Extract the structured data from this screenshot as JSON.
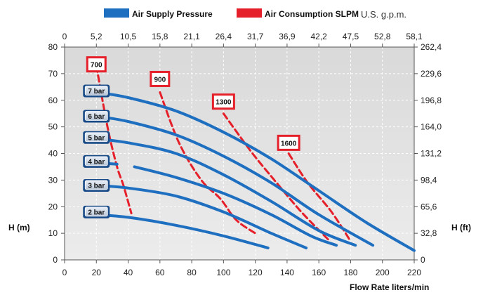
{
  "chart_data": {
    "type": "line",
    "legend": {
      "placement": "top",
      "items": [
        {
          "label": "Air Supply Pressure",
          "color": "#1f6fc0"
        },
        {
          "label": "Air Consumption SLPM",
          "color": "#e5202a"
        }
      ]
    },
    "top_axis_title": "U.S. g.p.m.",
    "xlabel": "Flow Rate liters/min",
    "ylabel_left": "H (m)",
    "ylabel_right": "H (ft)",
    "xlim": [
      0,
      220
    ],
    "ylim": [
      0,
      80
    ],
    "x_ticks": [
      "0",
      "20",
      "40",
      "60",
      "80",
      "100",
      "120",
      "140",
      "160",
      "180",
      "200",
      "220"
    ],
    "y_ticks": [
      "0",
      "10",
      "20",
      "30",
      "40",
      "50",
      "60",
      "70",
      "80"
    ],
    "top_ticks": [
      "0",
      "5,2",
      "10,5",
      "15,8",
      "21,1",
      "26,4",
      "31,7",
      "36,9",
      "42,2",
      "47,5",
      "52,8",
      "58,1"
    ],
    "right_ticks": [
      "0",
      "32,8",
      "65,6",
      "98,4",
      "131,2",
      "164,0",
      "196,8",
      "229,6",
      "262,4"
    ],
    "grid": true,
    "pressure_series": [
      {
        "name": "7 bar",
        "x": [
          20,
          40,
          70,
          100,
          130,
          160,
          190,
          220
        ],
        "y": [
          63,
          61,
          56,
          48,
          38,
          26,
          14,
          3.5
        ]
      },
      {
        "name": "6 bar",
        "x": [
          20,
          40,
          70,
          100,
          130,
          160,
          194
        ],
        "y": [
          54,
          52,
          47,
          39,
          29,
          17,
          5.5
        ]
      },
      {
        "name": "5 bar",
        "x": [
          20,
          40,
          70,
          100,
          130,
          160,
          183
        ],
        "y": [
          45.5,
          44,
          40,
          32,
          22,
          11,
          5.5
        ]
      },
      {
        "name": "4 bar",
        "x": [
          20,
          33
        ],
        "y": [
          36.5,
          36
        ]
      },
      {
        "name": "4 bar",
        "x": [
          44,
          70,
          100,
          130,
          155,
          171
        ],
        "y": [
          35,
          31,
          25,
          17,
          9,
          5.5
        ]
      },
      {
        "name": "3 bar",
        "x": [
          20,
          40,
          70,
          100,
          130,
          152
        ],
        "y": [
          28,
          27,
          24,
          18,
          10,
          4.5
        ]
      },
      {
        "name": "2 bar",
        "x": [
          20,
          40,
          70,
          100,
          128
        ],
        "y": [
          17,
          16,
          13,
          9,
          4.5
        ]
      }
    ],
    "consumption_series": [
      {
        "name": "700",
        "x": [
          20,
          27,
          33,
          37,
          42
        ],
        "y": [
          73,
          50,
          35,
          28,
          17.5
        ]
      },
      {
        "name": "900",
        "x": [
          60,
          72,
          86,
          98,
          108,
          120
        ],
        "y": [
          63,
          44,
          30,
          23,
          15,
          10
        ]
      },
      {
        "name": "1300",
        "x": [
          100,
          117,
          132,
          149,
          167
        ],
        "y": [
          55,
          41,
          30,
          18,
          7
        ]
      },
      {
        "name": "1600",
        "x": [
          141,
          153,
          168,
          180
        ],
        "y": [
          40,
          29,
          18,
          7
        ]
      }
    ],
    "pressure_labels": [
      {
        "text": "7 bar",
        "y": 63.5
      },
      {
        "text": "6 bar",
        "y": 54
      },
      {
        "text": "5 bar",
        "y": 46
      },
      {
        "text": "4 bar",
        "y": 37
      },
      {
        "text": "3 bar",
        "y": 28
      },
      {
        "text": "2 bar",
        "y": 18
      }
    ],
    "consumption_labels": [
      {
        "text": "700",
        "x": 20,
        "y": 73.5
      },
      {
        "text": "900",
        "x": 60,
        "y": 68
      },
      {
        "text": "1300",
        "x": 100,
        "y": 59.5
      },
      {
        "text": "1600",
        "x": 141,
        "y": 44
      }
    ]
  }
}
